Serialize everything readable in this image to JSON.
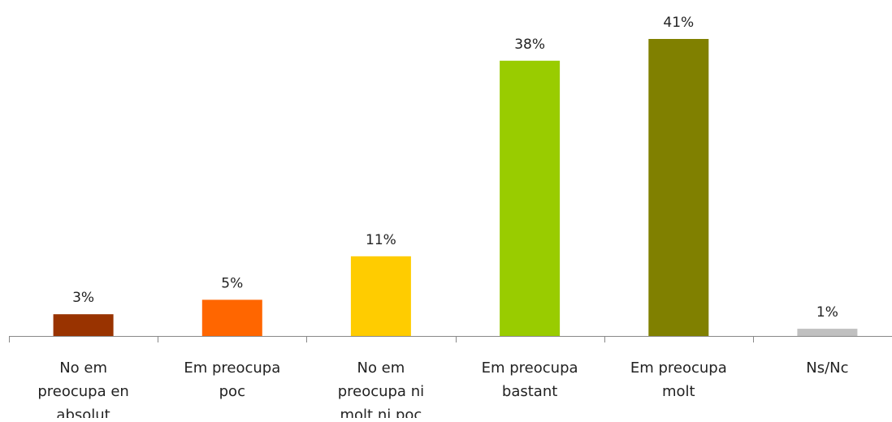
{
  "chart_data": {
    "type": "bar",
    "categories": [
      [
        "No em",
        "preocupa en",
        "absolut"
      ],
      [
        "Em preocupa",
        "poc"
      ],
      [
        "No em",
        "preocupa ni",
        "molt ni poc"
      ],
      [
        "Em preocupa",
        "bastant"
      ],
      [
        "Em preocupa",
        "molt"
      ],
      [
        "Ns/Nc"
      ]
    ],
    "values": [
      3,
      5,
      11,
      38,
      41,
      1
    ],
    "value_labels": [
      "3%",
      "5%",
      "11%",
      "38%",
      "41%",
      "1%"
    ],
    "colors": [
      "#993300",
      "#FF6600",
      "#FFCC00",
      "#99CC00",
      "#808000",
      "#C0C0C0"
    ],
    "unit": "%",
    "ylim": [
      0,
      41
    ],
    "grid": false,
    "legend": "none",
    "title": "",
    "xlabel": "",
    "ylabel": ""
  }
}
